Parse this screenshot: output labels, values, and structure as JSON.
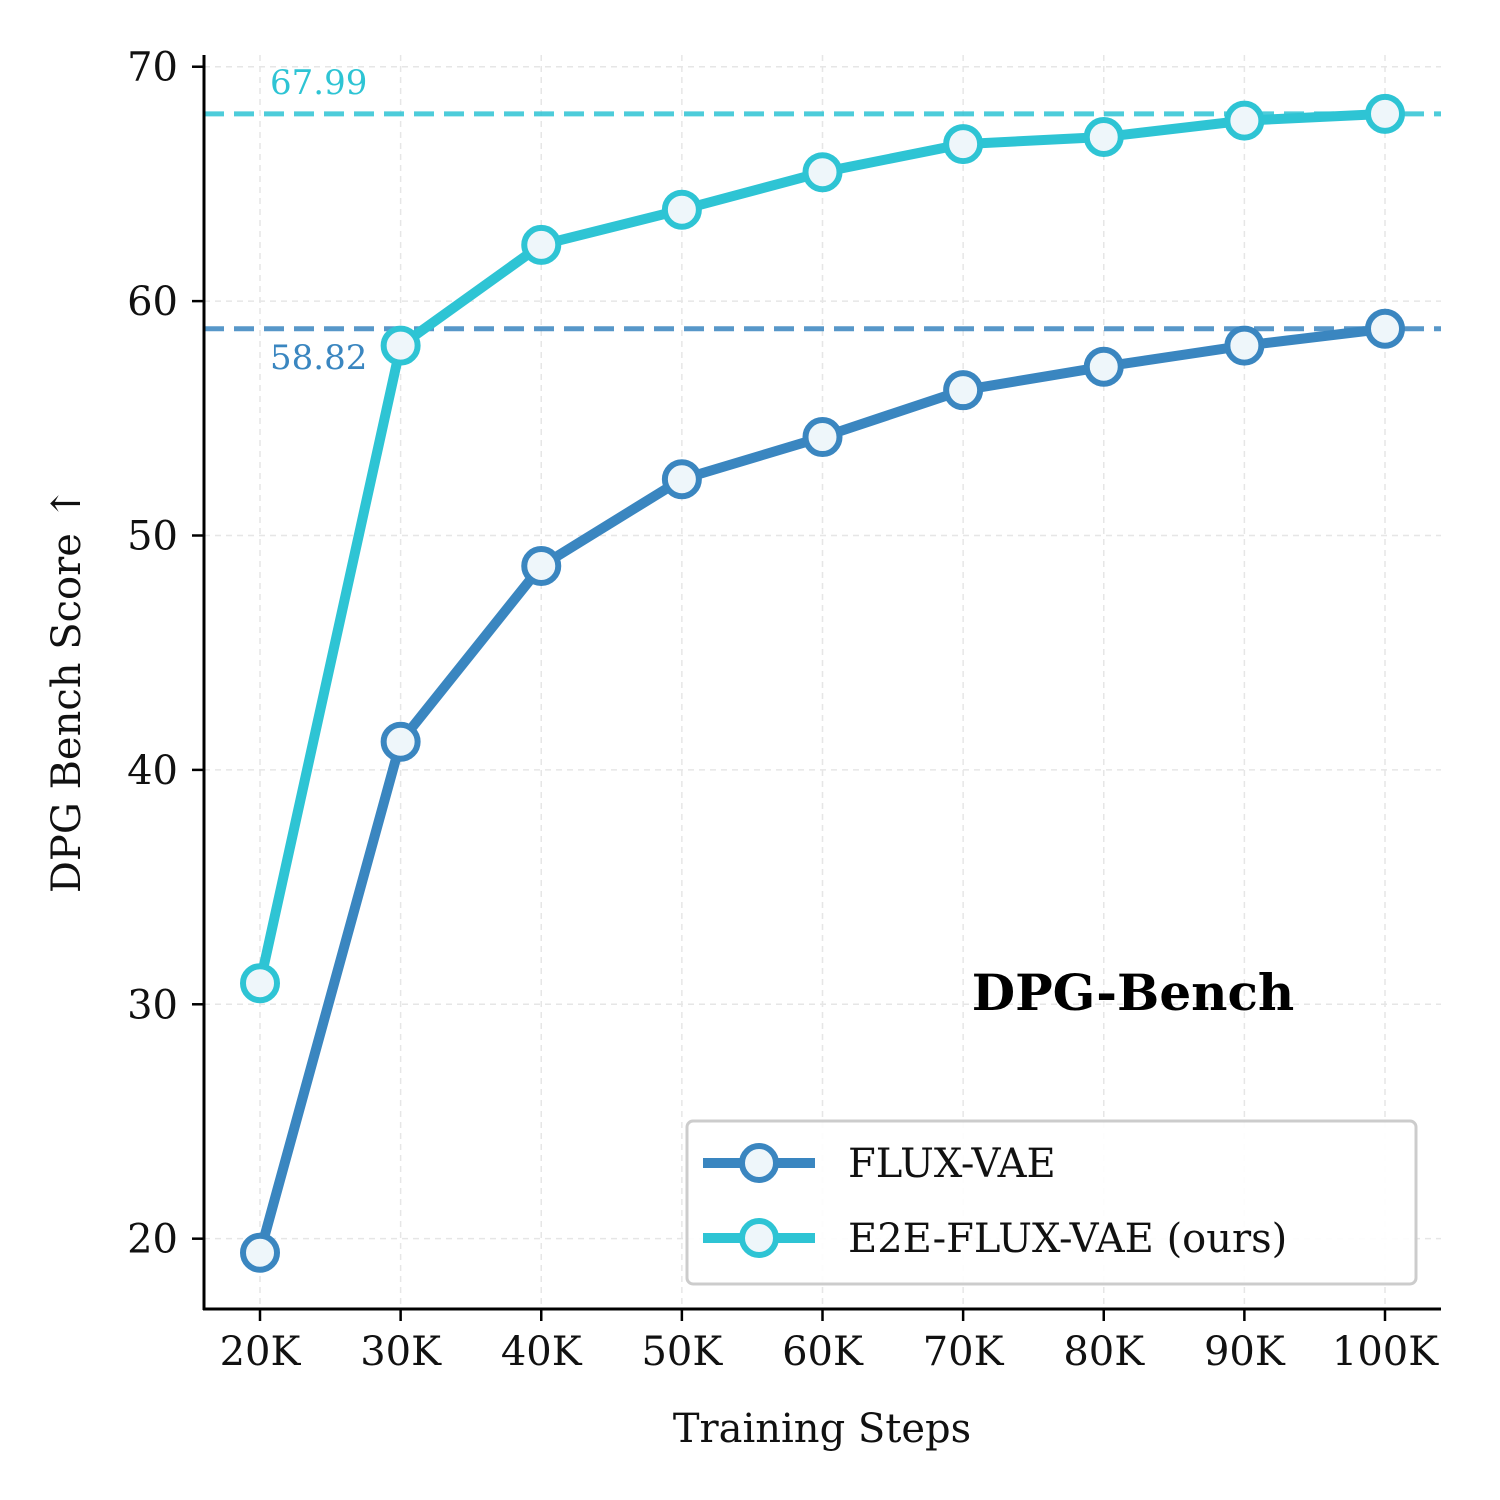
{
  "chart_data": {
    "type": "line",
    "title": "DPG-Bench",
    "xlabel": "Training Steps",
    "ylabel": "DPG Bench Score ↑",
    "categories": [
      "20K",
      "30K",
      "40K",
      "50K",
      "60K",
      "70K",
      "80K",
      "90K",
      "100K"
    ],
    "ylim": [
      17,
      70.5
    ],
    "yticks": [
      20,
      30,
      40,
      50,
      60,
      70
    ],
    "grid": true,
    "legend_position": "lower-right",
    "series": [
      {
        "name": "FLUX-VAE",
        "color": "#3a86c0",
        "values": [
          19.4,
          41.2,
          48.7,
          52.4,
          54.2,
          56.2,
          57.2,
          58.1,
          58.82
        ]
      },
      {
        "name": "E2E-FLUX-VAE (ours)",
        "color": "#2ec4d4",
        "values": [
          30.9,
          58.1,
          62.4,
          63.9,
          65.5,
          66.7,
          67.0,
          67.7,
          67.99
        ]
      }
    ],
    "reference_lines": [
      {
        "value": 67.99,
        "label": "67.99",
        "color": "#2ec4d4"
      },
      {
        "value": 58.82,
        "label": "58.82",
        "color": "#3a86c0"
      }
    ]
  }
}
